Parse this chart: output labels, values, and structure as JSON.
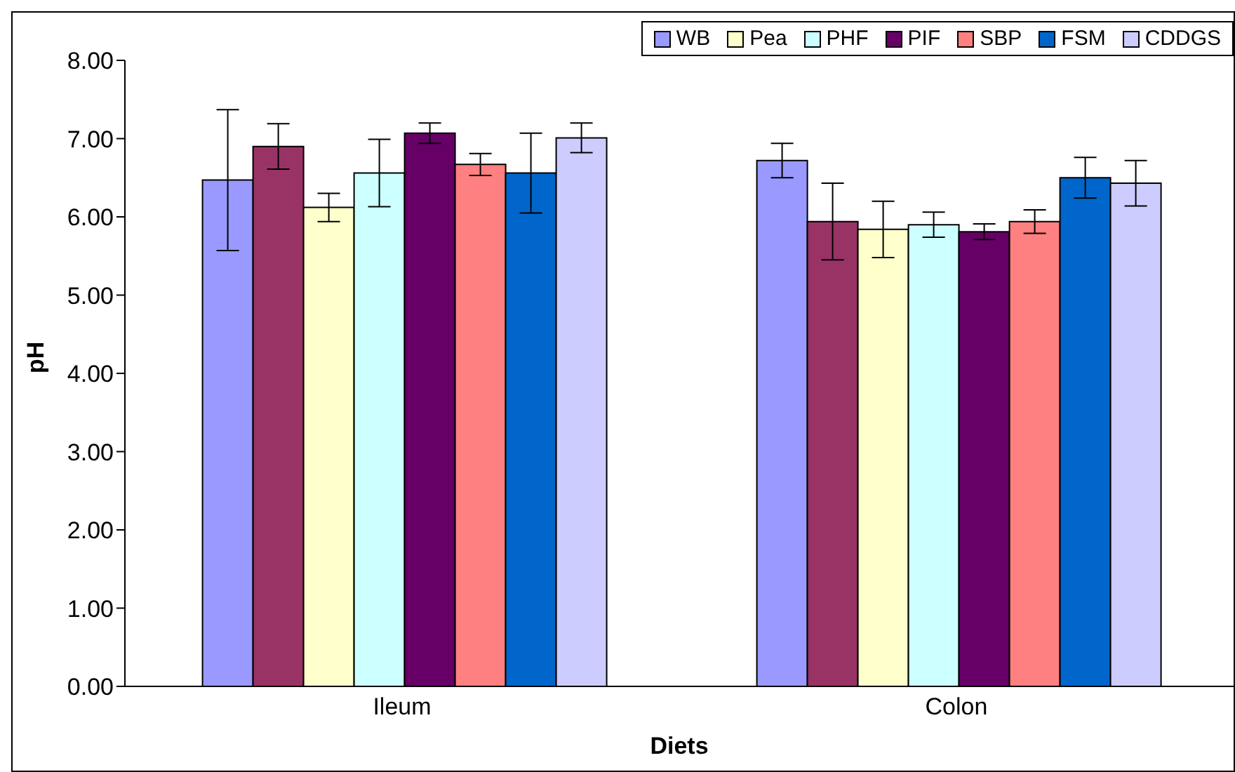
{
  "chart_data": {
    "type": "bar",
    "xlabel": "Diets",
    "ylabel": "pH",
    "categories": [
      "Ileum",
      "Colon"
    ],
    "series": [
      {
        "name": "WB",
        "color": "#9999ff",
        "values": [
          6.47,
          6.72
        ],
        "errors": [
          0.9,
          0.22
        ]
      },
      {
        "color": "#993366",
        "values": [
          6.9,
          5.94
        ],
        "errors": [
          0.29,
          0.49
        ]
      },
      {
        "name": "Pea",
        "color": "#ffffcc",
        "values": [
          6.12,
          5.84
        ],
        "errors": [
          0.18,
          0.36
        ]
      },
      {
        "name": "PHF",
        "color": "#ccffff",
        "values": [
          6.56,
          5.9
        ],
        "errors": [
          0.43,
          0.16
        ]
      },
      {
        "name": "PIF",
        "color": "#660066",
        "values": [
          7.07,
          5.81
        ],
        "errors": [
          0.13,
          0.1
        ]
      },
      {
        "name": "SBP",
        "color": "#ff8080",
        "values": [
          6.67,
          5.94
        ],
        "errors": [
          0.14,
          0.15
        ]
      },
      {
        "name": "FSM",
        "color": "#0066cc",
        "values": [
          6.56,
          6.5
        ],
        "errors": [
          0.51,
          0.26
        ]
      },
      {
        "name": "CDDGS",
        "color": "#ccccff",
        "values": [
          7.01,
          6.43
        ],
        "errors": [
          0.19,
          0.29
        ]
      }
    ],
    "ylim": [
      0,
      8
    ],
    "yticks": [
      {
        "value": 0,
        "label": "0.00"
      },
      {
        "value": 1,
        "label": "1.00"
      },
      {
        "value": 2,
        "label": "2.00"
      },
      {
        "value": 3,
        "label": "3.00"
      },
      {
        "value": 4,
        "label": "4.00"
      },
      {
        "value": 5,
        "label": "5.00"
      },
      {
        "value": 6,
        "label": "6.00"
      },
      {
        "value": 7,
        "label": "7.00"
      },
      {
        "value": 8,
        "label": "8.00"
      }
    ],
    "grid": false,
    "legend": "top right"
  }
}
